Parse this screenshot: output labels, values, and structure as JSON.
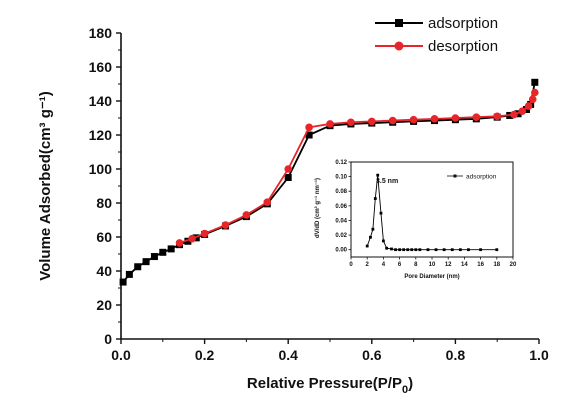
{
  "chart_data": [
    {
      "type": "line",
      "xlabel_main": "Relative Pressure(P/P",
      "xlabel_sub": "0",
      "xlabel_end": ")",
      "ylabel": "Volume Adsorbed(cm³ g⁻¹)",
      "xlim": [
        0,
        1.0
      ],
      "ylim": [
        0,
        180
      ],
      "xticks": [
        "0.0",
        "0.2",
        "0.4",
        "0.6",
        "0.8",
        "1.0"
      ],
      "yticks": [
        "0",
        "20",
        "40",
        "60",
        "80",
        "100",
        "120",
        "140",
        "160",
        "180"
      ],
      "legend_position": "top-right",
      "series": [
        {
          "name": "adsorption",
          "color": "#000000",
          "marker": "square",
          "points": [
            [
              0.005,
              33.5
            ],
            [
              0.02,
              38
            ],
            [
              0.04,
              42.5
            ],
            [
              0.06,
              45.5
            ],
            [
              0.08,
              48.5
            ],
            [
              0.1,
              51
            ],
            [
              0.12,
              53
            ],
            [
              0.14,
              55.5
            ],
            [
              0.16,
              57.5
            ],
            [
              0.18,
              59.5
            ],
            [
              0.2,
              61.5
            ],
            [
              0.25,
              66.5
            ],
            [
              0.3,
              72
            ],
            [
              0.35,
              79.5
            ],
            [
              0.4,
              95
            ],
            [
              0.45,
              120
            ],
            [
              0.5,
              125.5
            ],
            [
              0.55,
              126.5
            ],
            [
              0.6,
              127
            ],
            [
              0.65,
              127.5
            ],
            [
              0.7,
              128
            ],
            [
              0.75,
              128.5
            ],
            [
              0.8,
              129
            ],
            [
              0.85,
              129.5
            ],
            [
              0.9,
              130.5
            ],
            [
              0.93,
              131.5
            ],
            [
              0.95,
              132.5
            ],
            [
              0.97,
              135
            ],
            [
              0.98,
              138
            ],
            [
              0.99,
              151
            ]
          ]
        },
        {
          "name": "desorption",
          "color": "#e8262a",
          "marker": "circle",
          "points": [
            [
              0.99,
              145
            ],
            [
              0.985,
              141
            ],
            [
              0.975,
              137
            ],
            [
              0.96,
              134
            ],
            [
              0.94,
              132
            ],
            [
              0.9,
              131
            ],
            [
              0.85,
              130.5
            ],
            [
              0.8,
              130
            ],
            [
              0.75,
              129.5
            ],
            [
              0.7,
              129
            ],
            [
              0.65,
              128.5
            ],
            [
              0.6,
              128
            ],
            [
              0.55,
              127.5
            ],
            [
              0.5,
              126.5
            ],
            [
              0.45,
              124.5
            ],
            [
              0.4,
              100
            ],
            [
              0.35,
              80.5
            ],
            [
              0.3,
              73
            ],
            [
              0.25,
              67
            ],
            [
              0.2,
              62
            ],
            [
              0.17,
              59
            ],
            [
              0.14,
              56.5
            ]
          ]
        }
      ]
    },
    {
      "type": "line",
      "xlabel": "Pore Diameter (nm)",
      "ylabel": "dV/dD (cm³ g⁻¹ nm⁻¹)",
      "xlim": [
        0,
        20
      ],
      "ylim": [
        -0.01,
        0.12
      ],
      "xticks": [
        "0",
        "2",
        "4",
        "6",
        "8",
        "10",
        "12",
        "14",
        "16",
        "18",
        "20"
      ],
      "yticks": [
        "0.00",
        "0.02",
        "0.04",
        "0.06",
        "0.08",
        "0.10",
        "0.12"
      ],
      "annotation": "3.5 nm",
      "legend_position": "top-right",
      "series": [
        {
          "name": "adsorption",
          "color": "#000000",
          "marker": "square",
          "points": [
            [
              2.0,
              0.005
            ],
            [
              2.4,
              0.017
            ],
            [
              2.7,
              0.028
            ],
            [
              3.0,
              0.07
            ],
            [
              3.3,
              0.102
            ],
            [
              3.7,
              0.05
            ],
            [
              4.0,
              0.012
            ],
            [
              4.4,
              0.002
            ],
            [
              5.0,
              0.001
            ],
            [
              5.5,
              0.0
            ],
            [
              6.0,
              0.0
            ],
            [
              6.5,
              0.0
            ],
            [
              7.0,
              0.0
            ],
            [
              7.5,
              0.0
            ],
            [
              8.0,
              0.0
            ],
            [
              8.5,
              0.0
            ],
            [
              9.5,
              0.0
            ],
            [
              10.5,
              0.0
            ],
            [
              11.5,
              0.0
            ],
            [
              12.5,
              0.0
            ],
            [
              13.5,
              0.0
            ],
            [
              14.5,
              0.0
            ],
            [
              16.0,
              0.0
            ],
            [
              18.0,
              0.0
            ]
          ]
        }
      ]
    }
  ]
}
